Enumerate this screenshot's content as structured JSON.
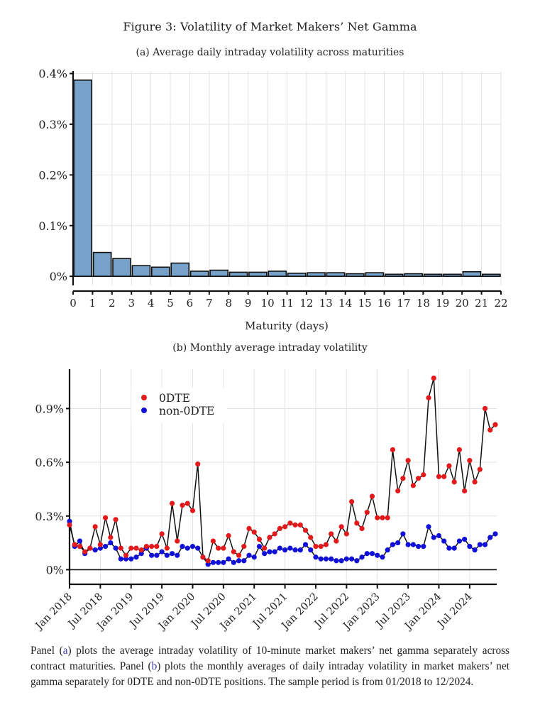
{
  "figure": {
    "title": "Figure 3: Volatility of Market Makers’ Net Gamma",
    "caption": {
      "part1": "Panel (",
      "ref_a": "a",
      "part2": ") plots the average intraday volatility of 10-minute market makers’ net gamma separately across contract maturities. Panel (",
      "ref_b": "b",
      "part3": ") plots the monthly averages of daily intraday volatility in market makers’ net gamma separately for 0DTE and non-0DTE positions. The sample period is from 01/2018 to 12/2024."
    }
  },
  "colors": {
    "bar_fill": "#76a1c8",
    "bar_stroke": "#111111",
    "series_0dte": "#e31a1c",
    "series_non0dte": "#1010d8",
    "line": "#111111",
    "grid": "#e3e3e3"
  },
  "chart_data": [
    {
      "id": "a",
      "type": "bar",
      "subtitle": "(a) Average daily intraday volatility across maturities",
      "xlabel": "Maturity (days)",
      "ylabel": "",
      "x_ticks": [
        "0",
        "1",
        "2",
        "3",
        "4",
        "5",
        "6",
        "7",
        "8",
        "9",
        "10",
        "11",
        "12",
        "13",
        "14",
        "15",
        "16",
        "17",
        "18",
        "19",
        "20",
        "21",
        "22"
      ],
      "y_ticks": [
        "0%",
        "0.1%",
        "0.2%",
        "0.3%",
        "0.4%"
      ],
      "y_tick_values": [
        0,
        0.1,
        0.2,
        0.3,
        0.4
      ],
      "ylim": [
        -0.018,
        0.405
      ],
      "xlim": [
        0,
        22
      ],
      "grid": true,
      "bins": [
        [
          0,
          1
        ],
        [
          1,
          2
        ],
        [
          2,
          3
        ],
        [
          3,
          4
        ],
        [
          4,
          5
        ],
        [
          5,
          6
        ],
        [
          6,
          7
        ],
        [
          7,
          8
        ],
        [
          8,
          9
        ],
        [
          9,
          10
        ],
        [
          10,
          11
        ],
        [
          11,
          12
        ],
        [
          12,
          13
        ],
        [
          13,
          14
        ],
        [
          14,
          15
        ],
        [
          15,
          16
        ],
        [
          16,
          17
        ],
        [
          17,
          18
        ],
        [
          18,
          19
        ],
        [
          19,
          20
        ],
        [
          20,
          21
        ],
        [
          21,
          22
        ]
      ],
      "values": [
        0.387,
        0.047,
        0.035,
        0.021,
        0.018,
        0.026,
        0.01,
        0.012,
        0.008,
        0.008,
        0.01,
        0.006,
        0.007,
        0.007,
        0.005,
        0.007,
        0.004,
        0.005,
        0.004,
        0.004,
        0.009,
        0.004
      ]
    },
    {
      "id": "b",
      "type": "line",
      "subtitle": "(b) Monthly average intraday volatility",
      "xlabel": "",
      "ylabel": "",
      "x_start": "Jan 2018",
      "x_end": "Dec 2024",
      "x_ticks": [
        "Jan 2018",
        "Jul 2018",
        "Jan 2019",
        "Jul 2019",
        "Jan 2020",
        "Jul 2020",
        "Jan 2021",
        "Jul 2021",
        "Jan 2022",
        "Jul 2022",
        "Jan 2023",
        "Jul 2023",
        "Jan 2024",
        "Jul 2024"
      ],
      "x_tick_months": [
        0,
        6,
        12,
        18,
        24,
        30,
        36,
        42,
        48,
        54,
        60,
        66,
        72,
        78
      ],
      "y_ticks": [
        "0%",
        "0.3%",
        "0.6%",
        "0.9%"
      ],
      "y_tick_values": [
        0,
        0.3,
        0.6,
        0.9
      ],
      "ylim": [
        -0.05,
        1.12
      ],
      "grid": true,
      "legend_position": "top-left",
      "series": [
        {
          "name": "0DTE",
          "values": [
            0.25,
            0.14,
            0.13,
            0.1,
            0.12,
            0.24,
            0.14,
            0.29,
            0.18,
            0.28,
            0.12,
            0.08,
            0.12,
            0.12,
            0.11,
            0.13,
            0.13,
            0.13,
            0.2,
            0.12,
            0.37,
            0.16,
            0.36,
            0.37,
            0.33,
            0.59,
            0.07,
            0.05,
            0.16,
            0.12,
            0.12,
            0.19,
            0.1,
            0.08,
            0.13,
            0.23,
            0.21,
            0.17,
            0.12,
            0.18,
            0.2,
            0.23,
            0.24,
            0.26,
            0.25,
            0.25,
            0.22,
            0.18,
            0.13,
            0.13,
            0.14,
            0.2,
            0.16,
            0.24,
            0.2,
            0.38,
            0.26,
            0.23,
            0.32,
            0.41,
            0.29,
            0.29,
            0.29,
            0.67,
            0.44,
            0.51,
            0.61,
            0.47,
            0.51,
            0.53,
            0.96,
            1.07,
            0.52,
            0.52,
            0.58,
            0.49,
            0.67,
            0.44,
            0.61,
            0.49,
            0.56,
            0.9,
            0.78,
            0.81
          ]
        },
        {
          "name": "non-0DTE",
          "values": [
            0.27,
            0.13,
            0.16,
            0.09,
            0.12,
            0.11,
            0.12,
            0.13,
            0.15,
            0.12,
            0.06,
            0.06,
            0.06,
            0.07,
            0.09,
            0.12,
            0.08,
            0.08,
            0.1,
            0.08,
            0.09,
            0.08,
            0.13,
            0.12,
            0.13,
            0.12,
            0.07,
            0.03,
            0.04,
            0.04,
            0.04,
            0.06,
            0.04,
            0.05,
            0.05,
            0.08,
            0.07,
            0.13,
            0.09,
            0.1,
            0.1,
            0.12,
            0.11,
            0.12,
            0.11,
            0.11,
            0.14,
            0.11,
            0.07,
            0.06,
            0.06,
            0.06,
            0.05,
            0.05,
            0.06,
            0.06,
            0.05,
            0.07,
            0.09,
            0.09,
            0.08,
            0.07,
            0.11,
            0.14,
            0.15,
            0.2,
            0.14,
            0.14,
            0.13,
            0.13,
            0.24,
            0.18,
            0.19,
            0.16,
            0.12,
            0.12,
            0.16,
            0.17,
            0.13,
            0.11,
            0.14,
            0.14,
            0.18,
            0.2
          ]
        }
      ]
    }
  ]
}
